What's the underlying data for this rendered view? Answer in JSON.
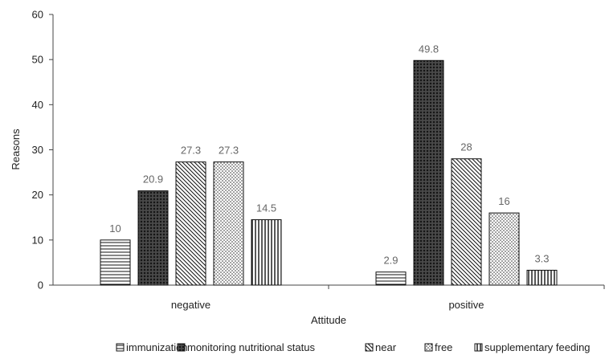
{
  "chart_data": {
    "type": "bar",
    "title": "",
    "xlabel": "Attitude",
    "ylabel": "Reasons",
    "categories": [
      "negative",
      "positive"
    ],
    "ylim": [
      0,
      60
    ],
    "yticks": [
      0,
      10,
      20,
      30,
      40,
      50,
      60
    ],
    "grid": false,
    "legend_position": "bottom",
    "series": [
      {
        "name": "immunization",
        "values": [
          10,
          2.9
        ],
        "pattern": "horizontal-lines"
      },
      {
        "name": "monitoring nutritional status",
        "values": [
          20.9,
          49.8
        ],
        "pattern": "dense-crosshatch"
      },
      {
        "name": "near",
        "values": [
          27.3,
          28
        ],
        "pattern": "diagonal-lines"
      },
      {
        "name": "free",
        "values": [
          27.3,
          16
        ],
        "pattern": "dots"
      },
      {
        "name": "supplementary feeding",
        "values": [
          14.5,
          3.3
        ],
        "pattern": "vertical-lines"
      }
    ]
  }
}
